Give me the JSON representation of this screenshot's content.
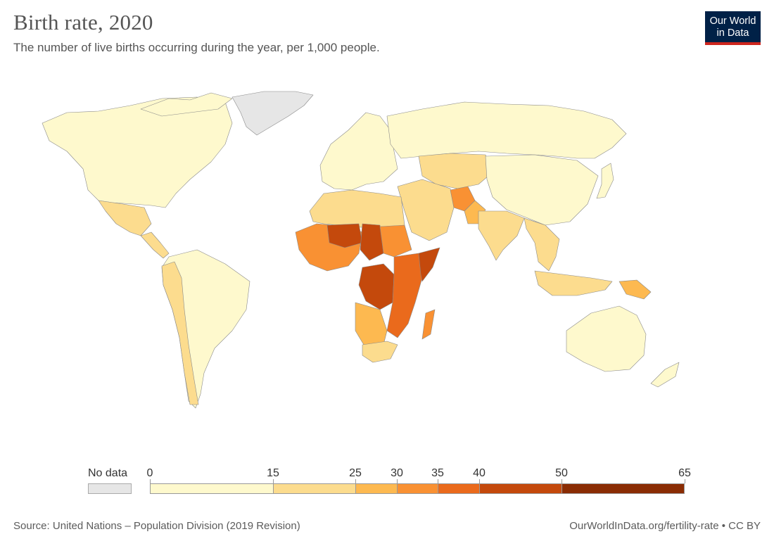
{
  "header": {
    "title": "Birth rate, 2020",
    "subtitle": "The number of live births occurring during the year, per 1,000 people."
  },
  "logo": {
    "line1": "Our World",
    "line2": "in Data",
    "bg_color": "#002147",
    "accent_color": "#ce261e"
  },
  "legend": {
    "no_data_label": "No data",
    "no_data_color": "#e6e6e6",
    "bins": [
      {
        "from": 0,
        "to": 15,
        "color": "#fef9cd"
      },
      {
        "from": 15,
        "to": 25,
        "color": "#fcdc8e"
      },
      {
        "from": 25,
        "to": 30,
        "color": "#fdb950"
      },
      {
        "from": 30,
        "to": 35,
        "color": "#f99133"
      },
      {
        "from": 35,
        "to": 40,
        "color": "#ea6a1c"
      },
      {
        "from": 40,
        "to": 50,
        "color": "#c4490c"
      },
      {
        "from": 50,
        "to": 65,
        "color": "#8a2c03"
      }
    ],
    "tick_labels": [
      "0",
      "15",
      "25",
      "30",
      "35",
      "40",
      "50",
      "65"
    ]
  },
  "footer": {
    "source": "Source: United Nations – Population Division (2019 Revision)",
    "link": "OurWorldInData.org/fertility-rate • CC BY"
  },
  "map_data": {
    "indicator": "Birth rate",
    "year": 2020,
    "regions": [
      {
        "name": "North America",
        "color": "#fef9cd"
      },
      {
        "name": "Greenland",
        "color": "#e6e6e6"
      },
      {
        "name": "Mexico",
        "color": "#fcdc8e"
      },
      {
        "name": "Central America",
        "color": "#fcdc8e"
      },
      {
        "name": "South America",
        "color": "#fef9cd"
      },
      {
        "name": "Andean countries",
        "color": "#fcdc8e"
      },
      {
        "name": "Europe",
        "color": "#fef9cd"
      },
      {
        "name": "Russia",
        "color": "#fef9cd"
      },
      {
        "name": "Central Asia",
        "color": "#fcdc8e"
      },
      {
        "name": "Middle East",
        "color": "#fcdc8e"
      },
      {
        "name": "Afghanistan",
        "color": "#f99133"
      },
      {
        "name": "Pakistan",
        "color": "#fdb950"
      },
      {
        "name": "India",
        "color": "#fcdc8e"
      },
      {
        "name": "China",
        "color": "#fef9cd"
      },
      {
        "name": "Southeast Asia",
        "color": "#fcdc8e"
      },
      {
        "name": "Japan",
        "color": "#fef9cd"
      },
      {
        "name": "Australia",
        "color": "#fef9cd"
      },
      {
        "name": "New Zealand",
        "color": "#fef9cd"
      },
      {
        "name": "Papua New Guinea",
        "color": "#fdb950"
      },
      {
        "name": "North Africa",
        "color": "#fcdc8e"
      },
      {
        "name": "West Africa",
        "color": "#f99133"
      },
      {
        "name": "Niger",
        "color": "#c4490c"
      },
      {
        "name": "Chad",
        "color": "#c4490c"
      },
      {
        "name": "DR Congo",
        "color": "#c4490c"
      },
      {
        "name": "Somalia",
        "color": "#c4490c"
      },
      {
        "name": "East Africa",
        "color": "#ea6a1c"
      },
      {
        "name": "Southern Africa",
        "color": "#fdb950"
      },
      {
        "name": "South Africa",
        "color": "#fcdc8e"
      },
      {
        "name": "Madagascar",
        "color": "#f99133"
      }
    ]
  }
}
